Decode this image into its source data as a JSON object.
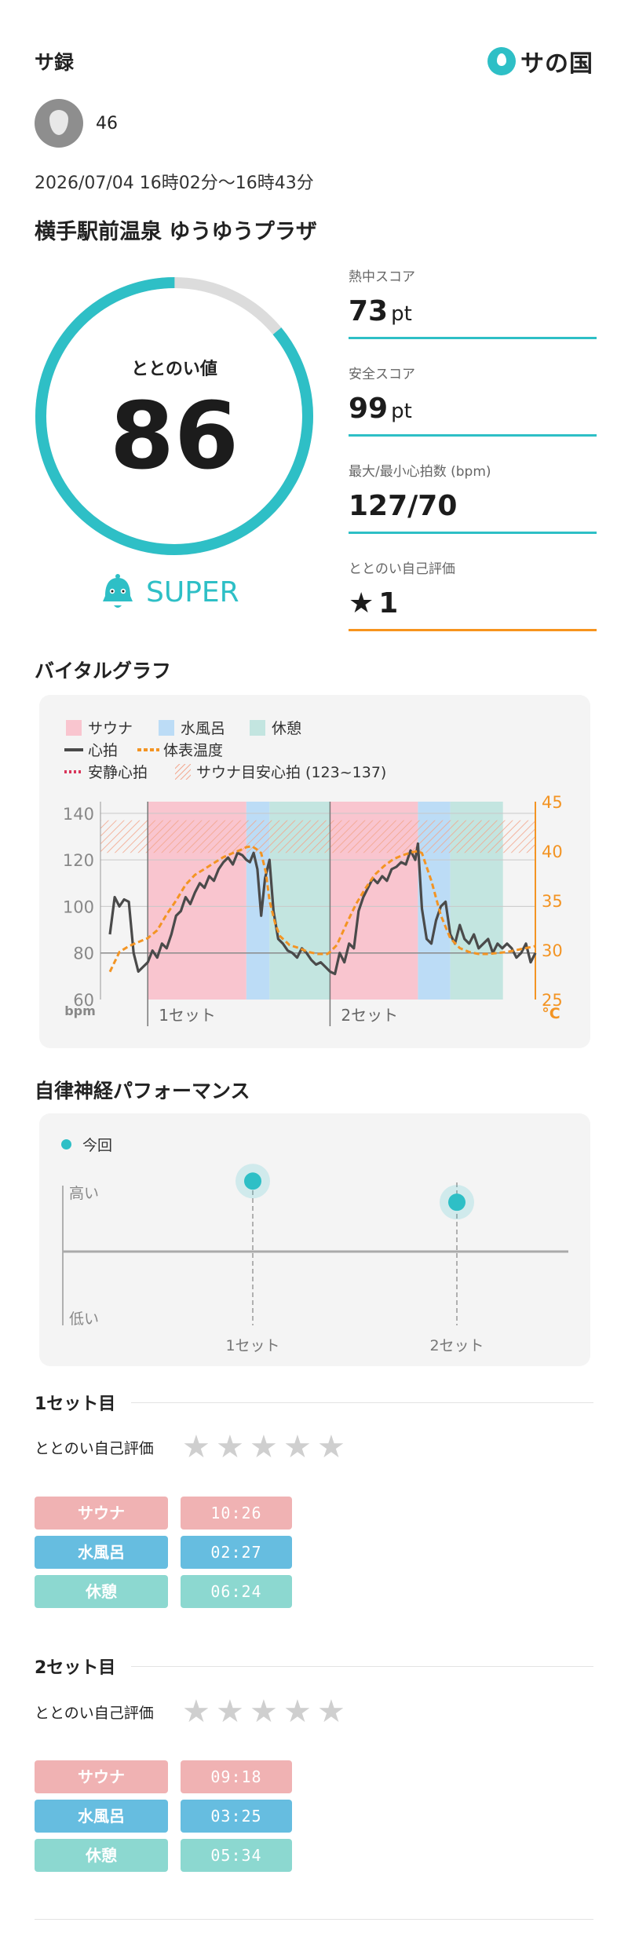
{
  "header": {
    "app_title": "サ録",
    "logo_text": "サの国",
    "logo_icon": "drop-icon"
  },
  "user": {
    "avatar_icon": "drop-icon",
    "name": "46"
  },
  "session": {
    "datetime": "2026/07/04 16時02分〜16時43分",
    "facility": "横手駅前温泉 ゆうゆうプラザ"
  },
  "totonoi": {
    "label": "ととのい値",
    "value": "86",
    "gauge_fraction": 0.86,
    "rank_icon": "bell-mascot-icon",
    "rank": "SUPER"
  },
  "scores": [
    {
      "label": "熱中スコア",
      "value": "73",
      "unit": "pt"
    },
    {
      "label": "安全スコア",
      "value": "99",
      "unit": "pt"
    },
    {
      "label": "最大/最小心拍数 (bpm)",
      "value": "127/70",
      "unit": ""
    },
    {
      "label": "ととのい自己評価",
      "value": "1",
      "unit": "",
      "icon": "star-icon"
    }
  ],
  "vital": {
    "title": "バイタルグラフ",
    "legend": {
      "sauna": "サウナ",
      "water": "水風呂",
      "rest": "休憩",
      "heart": "心拍",
      "body_temp": "体表温度",
      "resting": "安静心拍",
      "target": "サウナ目安心拍 (123~137)"
    },
    "left_unit": "bpm",
    "right_unit": "°C",
    "left_ticks": [
      "140",
      "120",
      "100",
      "80",
      "60"
    ],
    "right_ticks": [
      "45",
      "40",
      "35",
      "30",
      "25"
    ],
    "set_labels": [
      "1セット",
      "2セット"
    ],
    "colors": {
      "sauna": "#f9c5cf",
      "water": "#bcdcf6",
      "rest": "#c3e5e0",
      "heart": "#4a4a4a",
      "temp": "#f39423",
      "resting": "#d9355a",
      "target": "#f3a58a"
    }
  },
  "chart_data": {
    "type": "line",
    "x_unit": "min",
    "phases": [
      {
        "set": 1,
        "phase": "サウナ",
        "minutes": 10.43
      },
      {
        "set": 1,
        "phase": "水風呂",
        "minutes": 2.45
      },
      {
        "set": 1,
        "phase": "休憩",
        "minutes": 6.4
      },
      {
        "set": 2,
        "phase": "サウナ",
        "minutes": 9.3
      },
      {
        "set": 2,
        "phase": "水風呂",
        "minutes": 3.42
      },
      {
        "set": 2,
        "phase": "休憩",
        "minutes": 5.57
      }
    ],
    "target_band": [
      123,
      137
    ],
    "ylim_left": [
      60,
      145
    ],
    "ylim_right": [
      25,
      45
    ],
    "series": [
      {
        "name": "心拍",
        "axis": "left",
        "x": [
          -4,
          -3.5,
          -3,
          -2.5,
          -2,
          -1.5,
          -1,
          -0.5,
          0,
          0.5,
          1,
          1.5,
          2,
          2.5,
          3,
          3.5,
          4,
          4.5,
          5,
          5.5,
          6,
          6.5,
          7,
          7.5,
          8,
          8.5,
          9,
          9.5,
          10,
          10.43,
          10.8,
          11.2,
          11.6,
          12,
          12.4,
          12.88,
          13.3,
          13.8,
          14.3,
          14.8,
          15.3,
          15.8,
          16.3,
          16.8,
          17.3,
          17.8,
          18.3,
          18.8,
          19.28,
          19.8,
          20.3,
          20.8,
          21.3,
          21.8,
          22.3,
          22.8,
          23.3,
          23.8,
          24.3,
          24.8,
          25.3,
          25.8,
          26.3,
          26.8,
          27.3,
          27.8,
          28.3,
          28.58,
          29,
          29.5,
          30,
          30.5,
          31,
          31.5,
          32,
          32.5,
          33,
          33.5,
          34,
          34.5,
          35,
          35.5,
          36,
          36.5,
          37,
          37.5,
          38,
          38.5,
          39,
          39.5,
          40,
          40.5,
          41
        ],
        "values": [
          88,
          104,
          100,
          103,
          102,
          80,
          72,
          74,
          76,
          81,
          78,
          84,
          82,
          88,
          96,
          98,
          104,
          101,
          106,
          110,
          108,
          113,
          111,
          116,
          119,
          121,
          118,
          123,
          122,
          120,
          119,
          123,
          116,
          96,
          112,
          120,
          98,
          86,
          84,
          81,
          80,
          78,
          82,
          80,
          77,
          75,
          76,
          74,
          72,
          71,
          80,
          76,
          84,
          82,
          98,
          104,
          108,
          112,
          110,
          113,
          111,
          116,
          117,
          119,
          118,
          124,
          120,
          127,
          99,
          86,
          84,
          94,
          100,
          102,
          88,
          84,
          92,
          86,
          84,
          88,
          82,
          84,
          86,
          80,
          84,
          82,
          84,
          82,
          78,
          80,
          84,
          76,
          80
        ]
      },
      {
        "name": "体表温度",
        "axis": "right",
        "x": [
          -4,
          -3,
          -2,
          -1,
          0,
          1,
          2,
          3,
          4,
          5,
          6,
          7,
          8,
          9,
          10,
          10.43,
          11,
          11.5,
          12,
          12.5,
          12.88,
          13.5,
          14,
          15,
          16,
          17,
          18,
          19,
          19.28,
          20,
          21,
          22,
          23,
          24,
          25,
          26,
          27,
          28,
          28.58,
          29,
          29.5,
          30,
          31,
          32,
          33,
          34,
          35,
          36,
          37,
          38,
          39,
          40,
          41
        ],
        "values": [
          27.8,
          29.8,
          30.4,
          30.8,
          31.2,
          32,
          33.6,
          35,
          36.6,
          37.6,
          38.2,
          38.8,
          39.4,
          39.8,
          40.2,
          40.4,
          40.5,
          40.2,
          39.8,
          37.8,
          35,
          32.6,
          31.4,
          30.5,
          30.2,
          29.8,
          29.6,
          29.6,
          29.8,
          30.5,
          32.6,
          34.6,
          36.2,
          37.6,
          38.5,
          39.2,
          39.6,
          39.9,
          40,
          39.8,
          38.4,
          37,
          33.5,
          31.2,
          30.2,
          29.8,
          29.6,
          29.6,
          29.7,
          29.8,
          30,
          30.2,
          30.4
        ]
      }
    ]
  },
  "autonomic": {
    "title": "自律神経パフォーマンス",
    "legend": "今回",
    "high_label": "高い",
    "low_label": "低い",
    "set_labels": [
      "1セット",
      "2セット"
    ],
    "values": [
      0.6,
      0.42
    ]
  },
  "sets": [
    {
      "title": "1セット目",
      "self_eval_label": "ととのい自己評価",
      "stars_filled": 0,
      "stars_total": 5,
      "phases": [
        {
          "label": "サウナ",
          "time": "10:26"
        },
        {
          "label": "水風呂",
          "time": "02:27"
        },
        {
          "label": "休憩",
          "time": "06:24"
        }
      ]
    },
    {
      "title": "2セット目",
      "self_eval_label": "ととのい自己評価",
      "stars_filled": 0,
      "stars_total": 5,
      "phases": [
        {
          "label": "サウナ",
          "time": "09:18"
        },
        {
          "label": "水風呂",
          "time": "03:25"
        },
        {
          "label": "休憩",
          "time": "05:34"
        }
      ]
    }
  ]
}
